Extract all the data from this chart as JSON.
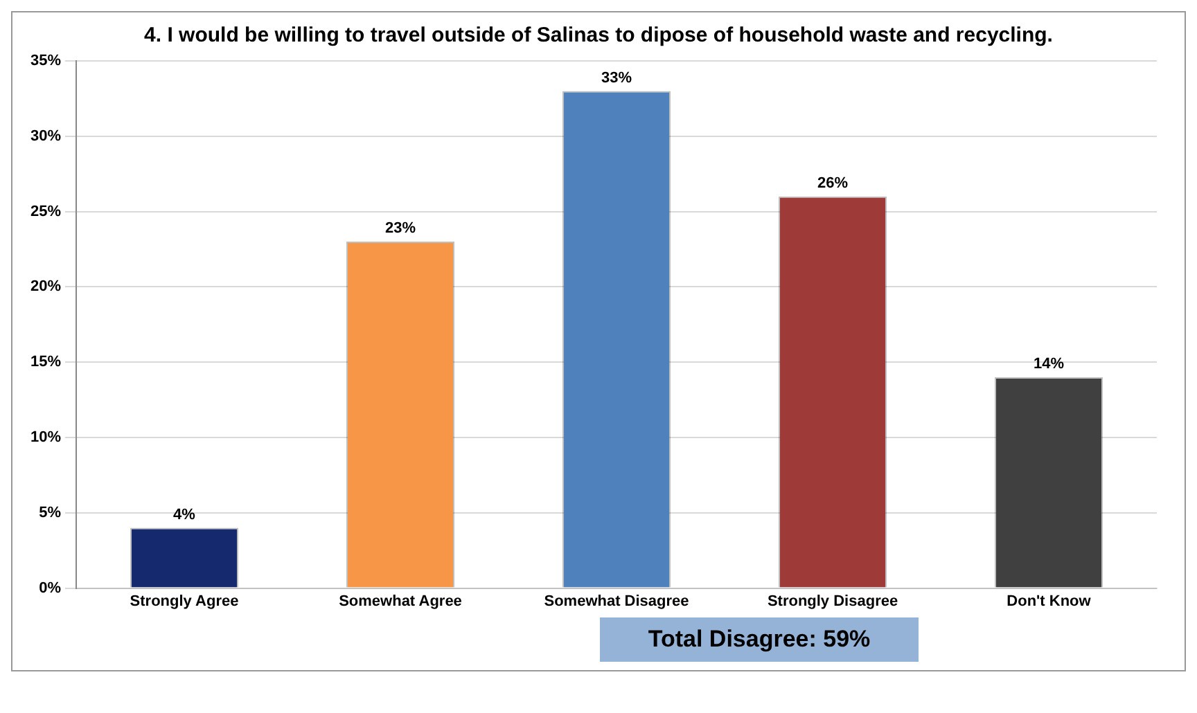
{
  "chart_data": {
    "type": "bar",
    "title": "4.  I would be willing to travel outside of Salinas to dipose of household waste and recycling.",
    "categories": [
      "Strongly Agree",
      "Somewhat Agree",
      "Somewhat Disagree",
      "Strongly Disagree",
      "Don't Know"
    ],
    "values": [
      4,
      23,
      33,
      26,
      14
    ],
    "colors": [
      "#14296e",
      "#f79646",
      "#4f81bd",
      "#9e3a38",
      "#404040"
    ],
    "value_labels": [
      "4%",
      "23%",
      "33%",
      "26%",
      "14%"
    ],
    "ylim": [
      0,
      35
    ],
    "yticks": [
      {
        "value": 0,
        "label": "0%"
      },
      {
        "value": 5,
        "label": "5%"
      },
      {
        "value": 10,
        "label": "10%"
      },
      {
        "value": 15,
        "label": "15%"
      },
      {
        "value": 20,
        "label": "20%"
      },
      {
        "value": 25,
        "label": "25%"
      },
      {
        "value": 30,
        "label": "30%"
      },
      {
        "value": 35,
        "label": "35%"
      }
    ],
    "grid": "y",
    "annotations": [
      "Total Disagree: 59%"
    ]
  }
}
